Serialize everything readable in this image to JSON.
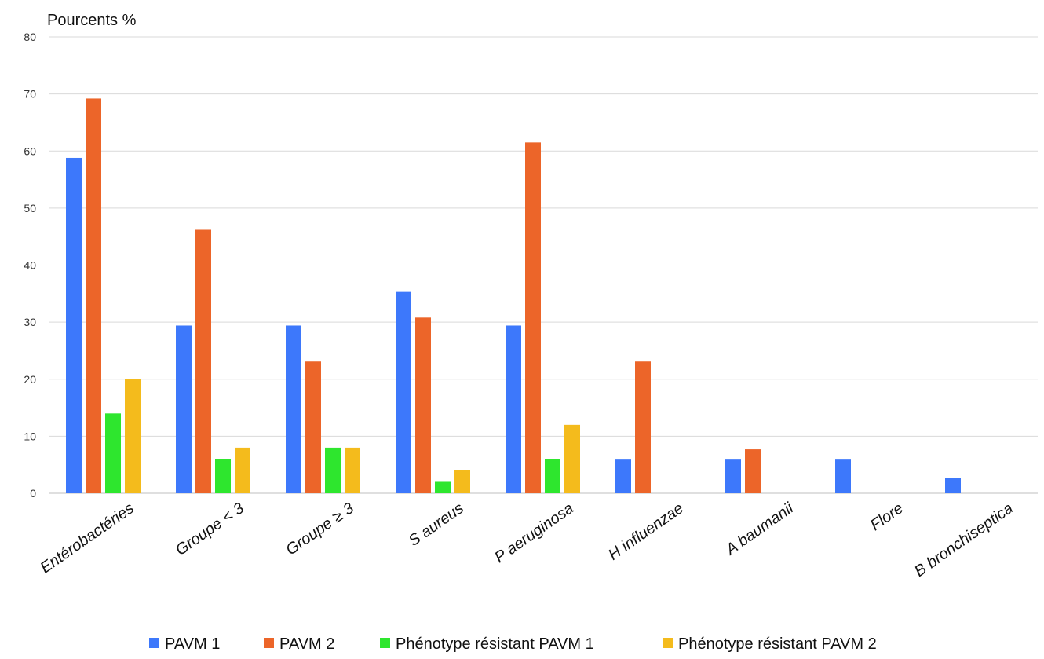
{
  "chart_data": {
    "type": "bar",
    "title": "",
    "ylabel": "Pourcents %",
    "xlabel": "",
    "ylim": [
      0,
      80
    ],
    "yticks": [
      0,
      10,
      20,
      30,
      40,
      50,
      60,
      70,
      80
    ],
    "grid": true,
    "legend_position": "bottom",
    "categories": [
      "Entérobactéries",
      "Groupe < 3",
      "Groupe ≥ 3",
      "S aureus",
      "P aeruginosa",
      "H influenzae",
      "A baumanii",
      "Flore",
      "B bronchiseptica"
    ],
    "series": [
      {
        "name": "PAVM 1",
        "color": "#3d78fb",
        "values": [
          58.8,
          29.4,
          29.4,
          35.3,
          29.4,
          5.9,
          5.9,
          5.9,
          2.7
        ]
      },
      {
        "name": "PAVM 2",
        "color": "#ec6529",
        "values": [
          69.2,
          46.2,
          23.1,
          30.8,
          61.5,
          23.1,
          7.7,
          null,
          null
        ]
      },
      {
        "name": "Phénotype résistant PAVM 1",
        "color": "#2ee62e",
        "values": [
          14,
          6,
          8,
          2,
          6,
          null,
          null,
          null,
          null
        ]
      },
      {
        "name": "Phénotype résistant PAVM 2",
        "color": "#f4bb1c",
        "values": [
          20,
          8,
          8,
          4,
          12,
          null,
          null,
          null,
          null
        ]
      }
    ]
  }
}
